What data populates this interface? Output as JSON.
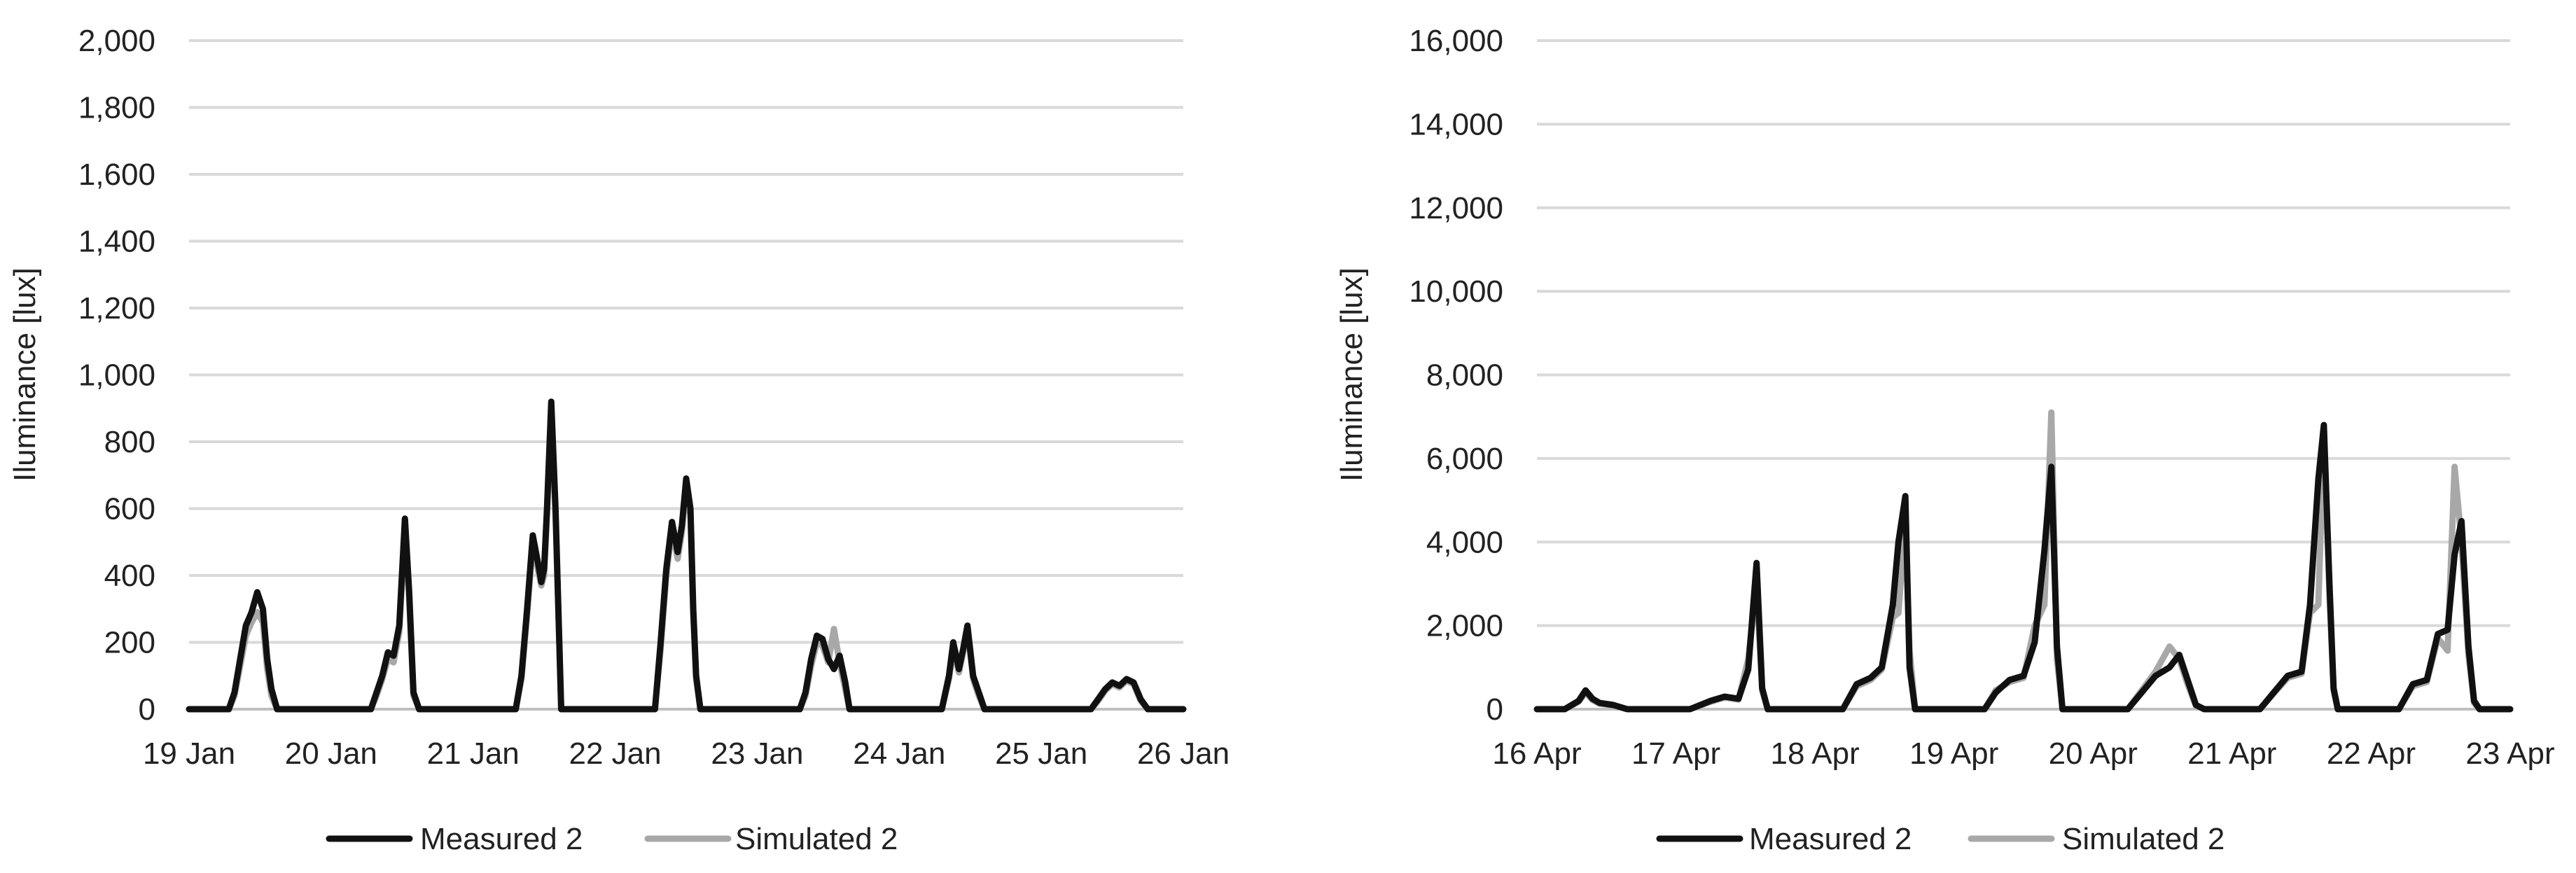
{
  "chart_data": [
    {
      "type": "line",
      "title": "",
      "xlabel": "",
      "ylabel": "Iluminance [lux]",
      "ylim": [
        0,
        2000
      ],
      "yticks": [
        0,
        200,
        400,
        600,
        800,
        1000,
        1200,
        1400,
        1600,
        1800,
        2000
      ],
      "ytick_labels": [
        "0",
        "200",
        "400",
        "600",
        "800",
        "1,000",
        "1,200",
        "1,400",
        "1,600",
        "1,800",
        "2,000"
      ],
      "xlim": [
        0,
        7
      ],
      "xticks": [
        0,
        1,
        2,
        3,
        4,
        5,
        6,
        7
      ],
      "xtick_labels": [
        "19 Jan",
        "20 Jan",
        "21 Jan",
        "22 Jan",
        "23 Jan",
        "24 Jan",
        "25 Jan",
        "26 Jan"
      ],
      "grid": true,
      "legend_position": "bottom",
      "series": [
        {
          "name": "Measured 2",
          "color": "#111111",
          "x": [
            0,
            0.28,
            0.32,
            0.36,
            0.4,
            0.44,
            0.48,
            0.52,
            0.55,
            0.58,
            0.62,
            0.66,
            0.7,
            1.28,
            1.32,
            1.36,
            1.4,
            1.44,
            1.48,
            1.52,
            1.55,
            1.58,
            1.62,
            1.66,
            2.3,
            2.34,
            2.38,
            2.42,
            2.46,
            2.48,
            2.5,
            2.52,
            2.55,
            2.58,
            2.62,
            2.65,
            2.68,
            2.72,
            2.75,
            2.78,
            3.28,
            3.32,
            3.36,
            3.4,
            3.44,
            3.47,
            3.5,
            3.53,
            3.55,
            3.57,
            3.6,
            3.63,
            3.67,
            3.7,
            4.3,
            4.34,
            4.38,
            4.42,
            4.46,
            4.5,
            4.54,
            4.58,
            4.62,
            4.65,
            4.68,
            4.72,
            5.3,
            5.35,
            5.38,
            5.42,
            5.45,
            5.48,
            5.52,
            5.56,
            5.6,
            5.65,
            5.7,
            5.75,
            6.35,
            6.4,
            6.45,
            6.5,
            6.55,
            6.6,
            6.65,
            6.7,
            6.75,
            7
          ],
          "y": [
            0,
            0,
            50,
            150,
            250,
            290,
            350,
            300,
            150,
            60,
            0,
            0,
            0,
            0,
            50,
            100,
            170,
            160,
            250,
            570,
            350,
            50,
            0,
            0,
            0,
            100,
            300,
            520,
            430,
            380,
            420,
            600,
            920,
            600,
            0,
            0,
            0,
            0,
            0,
            0,
            0,
            200,
            420,
            560,
            470,
            550,
            690,
            600,
            300,
            100,
            0,
            0,
            0,
            0,
            0,
            50,
            150,
            220,
            210,
            150,
            120,
            160,
            80,
            0,
            0,
            0,
            0,
            100,
            200,
            120,
            180,
            250,
            100,
            50,
            0,
            0,
            0,
            0,
            0,
            30,
            60,
            80,
            70,
            90,
            80,
            30,
            0,
            0
          ]
        },
        {
          "name": "Simulated 2",
          "color": "#a8a8a8",
          "x": [
            0,
            0.28,
            0.32,
            0.36,
            0.4,
            0.44,
            0.48,
            0.52,
            0.55,
            0.58,
            0.62,
            0.66,
            0.7,
            1.28,
            1.32,
            1.36,
            1.4,
            1.44,
            1.48,
            1.52,
            1.55,
            1.58,
            1.62,
            1.66,
            2.3,
            2.34,
            2.38,
            2.42,
            2.46,
            2.48,
            2.5,
            2.52,
            2.55,
            2.58,
            2.62,
            2.65,
            2.68,
            2.72,
            2.75,
            2.78,
            3.28,
            3.32,
            3.36,
            3.4,
            3.44,
            3.47,
            3.5,
            3.53,
            3.55,
            3.57,
            3.6,
            3.63,
            3.67,
            3.7,
            4.3,
            4.34,
            4.38,
            4.42,
            4.46,
            4.5,
            4.54,
            4.58,
            4.62,
            4.65,
            4.68,
            4.72,
            5.3,
            5.35,
            5.38,
            5.42,
            5.45,
            5.48,
            5.52,
            5.56,
            5.6,
            5.65,
            5.7,
            5.75,
            6.35,
            6.4,
            6.45,
            6.5,
            6.55,
            6.6,
            6.65,
            6.7,
            6.75,
            7
          ],
          "y": [
            0,
            0,
            40,
            130,
            220,
            260,
            290,
            260,
            120,
            40,
            0,
            0,
            0,
            0,
            40,
            90,
            150,
            140,
            230,
            540,
            330,
            40,
            0,
            0,
            0,
            90,
            280,
            500,
            410,
            370,
            400,
            580,
            880,
            580,
            0,
            0,
            0,
            0,
            0,
            0,
            0,
            180,
            400,
            540,
            450,
            530,
            670,
            580,
            280,
            90,
            0,
            0,
            0,
            0,
            0,
            40,
            130,
            200,
            190,
            140,
            240,
            140,
            60,
            0,
            0,
            0,
            0,
            90,
            180,
            110,
            170,
            240,
            90,
            40,
            0,
            0,
            0,
            0,
            0,
            25,
            55,
            75,
            65,
            85,
            75,
            25,
            0,
            0
          ]
        }
      ]
    },
    {
      "type": "line",
      "title": "",
      "xlabel": "",
      "ylabel": "Iluminance [lux]",
      "ylim": [
        0,
        16000
      ],
      "yticks": [
        0,
        2000,
        4000,
        6000,
        8000,
        10000,
        12000,
        14000,
        16000
      ],
      "ytick_labels": [
        "0",
        "2,000",
        "4,000",
        "6,000",
        "8,000",
        "10,000",
        "12,000",
        "14,000",
        "16,000"
      ],
      "xlim": [
        0,
        7
      ],
      "xticks": [
        0,
        1,
        2,
        3,
        4,
        5,
        6,
        7
      ],
      "xtick_labels": [
        "16 Apr",
        "17 Apr",
        "18 Apr",
        "19 Apr",
        "20 Apr",
        "21 Apr",
        "22 Apr",
        "23 Apr"
      ],
      "grid": true,
      "legend_position": "bottom",
      "series": [
        {
          "name": "Measured 2",
          "color": "#111111",
          "x": [
            0,
            0.2,
            0.3,
            0.35,
            0.4,
            0.45,
            0.55,
            0.65,
            0.75,
            1.1,
            1.25,
            1.35,
            1.45,
            1.52,
            1.58,
            1.62,
            1.66,
            1.72,
            1.76,
            2.2,
            2.3,
            2.4,
            2.48,
            2.56,
            2.6,
            2.65,
            2.68,
            2.72,
            2.78,
            3.22,
            3.3,
            3.4,
            3.5,
            3.58,
            3.65,
            3.7,
            3.74,
            3.78,
            3.82,
            4.25,
            4.35,
            4.45,
            4.55,
            4.62,
            4.68,
            4.74,
            4.8,
            5.2,
            5.3,
            5.4,
            5.5,
            5.56,
            5.62,
            5.66,
            5.7,
            5.73,
            5.76,
            5.8,
            6.2,
            6.3,
            6.4,
            6.48,
            6.55,
            6.6,
            6.65,
            6.7,
            6.74,
            6.78,
            6.82,
            7
          ],
          "y": [
            0,
            0,
            200,
            450,
            250,
            150,
            100,
            0,
            0,
            0,
            200,
            300,
            250,
            950,
            3500,
            500,
            0,
            0,
            0,
            0,
            600,
            750,
            1000,
            2500,
            4000,
            5100,
            1000,
            0,
            0,
            0,
            400,
            700,
            800,
            1600,
            3800,
            5800,
            1500,
            0,
            0,
            0,
            400,
            800,
            1000,
            1300,
            700,
            100,
            0,
            0,
            400,
            800,
            900,
            2500,
            5500,
            6800,
            3000,
            500,
            0,
            0,
            0,
            600,
            700,
            1800,
            1900,
            3700,
            4500,
            1500,
            200,
            0,
            0,
            0
          ]
        },
        {
          "name": "Simulated 2",
          "color": "#a8a8a8",
          "x": [
            0,
            0.2,
            0.3,
            0.35,
            0.4,
            0.45,
            0.55,
            0.65,
            0.75,
            1.1,
            1.25,
            1.35,
            1.45,
            1.52,
            1.58,
            1.62,
            1.66,
            1.72,
            1.76,
            2.2,
            2.3,
            2.4,
            2.48,
            2.56,
            2.6,
            2.65,
            2.68,
            2.72,
            2.78,
            3.22,
            3.3,
            3.4,
            3.5,
            3.58,
            3.65,
            3.7,
            3.74,
            3.78,
            3.82,
            4.25,
            4.35,
            4.45,
            4.55,
            4.62,
            4.68,
            4.74,
            4.8,
            5.2,
            5.3,
            5.4,
            5.5,
            5.56,
            5.62,
            5.66,
            5.7,
            5.73,
            5.76,
            5.8,
            6.2,
            6.3,
            6.4,
            6.48,
            6.55,
            6.6,
            6.65,
            6.7,
            6.74,
            6.78,
            6.82,
            7
          ],
          "y": [
            0,
            0,
            180,
            400,
            220,
            130,
            90,
            0,
            0,
            0,
            180,
            280,
            230,
            1200,
            3000,
            450,
            0,
            0,
            0,
            0,
            550,
            700,
            950,
            2200,
            2300,
            4500,
            1400,
            0,
            0,
            0,
            450,
            650,
            750,
            2000,
            2500,
            7100,
            1200,
            0,
            0,
            0,
            450,
            900,
            1500,
            1200,
            600,
            80,
            0,
            0,
            380,
            750,
            850,
            2300,
            2500,
            6600,
            2700,
            450,
            0,
            0,
            0,
            550,
            650,
            1700,
            1400,
            5800,
            4000,
            1300,
            150,
            0,
            0,
            0
          ]
        }
      ]
    }
  ]
}
